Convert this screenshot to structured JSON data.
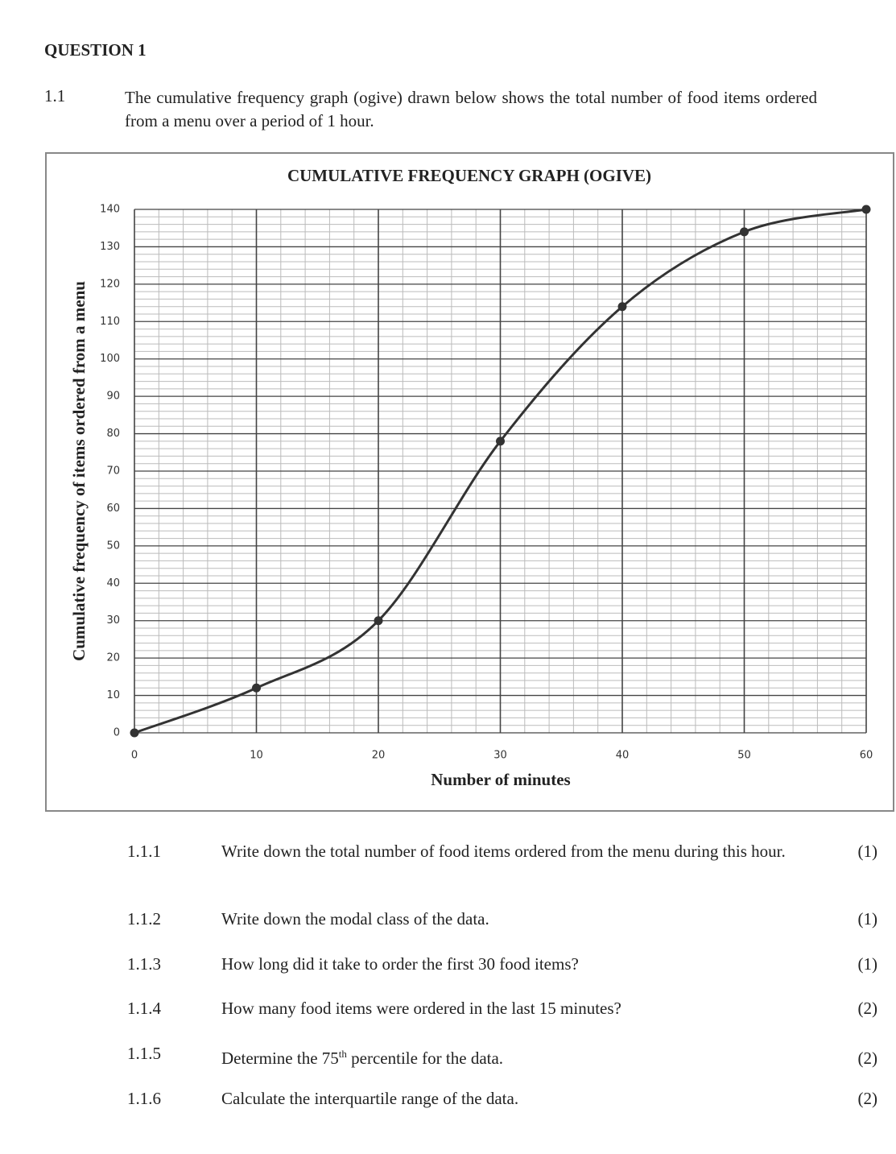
{
  "heading": "QUESTION 1",
  "intro": {
    "number": "1.1",
    "text": "The cumulative frequency graph (ogive) drawn below shows the total number of food items ordered from a menu over a period of 1 hour."
  },
  "chart_data": {
    "type": "line",
    "title": "CUMULATIVE FREQUENCY GRAPH (OGIVE)",
    "x_label": "Number of minutes",
    "y_label": "Cumulative frequency of items ordered from a menu",
    "x": [
      0,
      10,
      20,
      30,
      40,
      50,
      60
    ],
    "values": [
      0,
      12,
      30,
      78,
      114,
      134,
      140
    ],
    "color": "#333333",
    "xlim": [
      0,
      60
    ],
    "xticks": [
      0,
      10,
      20,
      30,
      40,
      50,
      60
    ],
    "ylim": [
      0,
      140
    ],
    "yticks": [
      0,
      10,
      20,
      30,
      40,
      50,
      60,
      70,
      80,
      90,
      100,
      110,
      120,
      130,
      140
    ],
    "grid": true,
    "smooth": true
  },
  "questions": [
    {
      "number": "1.1.1",
      "text": "Write down the total number of food items ordered from the menu during this hour.",
      "marks": "(1)"
    },
    {
      "number": "1.1.2",
      "text": "Write down the modal class of the data.",
      "marks": "(1)"
    },
    {
      "number": "1.1.3",
      "text": "How long did it take to order the first 30 food items?",
      "marks": "(1)"
    },
    {
      "number": "1.1.4",
      "text": "How many food items were ordered in the last 15 minutes?",
      "marks": "(2)"
    },
    {
      "number": "1.1.5",
      "text": [
        "Determine the 75",
        "th",
        " percentile for the data."
      ],
      "marks": "(2)"
    },
    {
      "number": "1.1.6",
      "text": "Calculate the interquartile range of the data.",
      "marks": "(2)"
    }
  ]
}
